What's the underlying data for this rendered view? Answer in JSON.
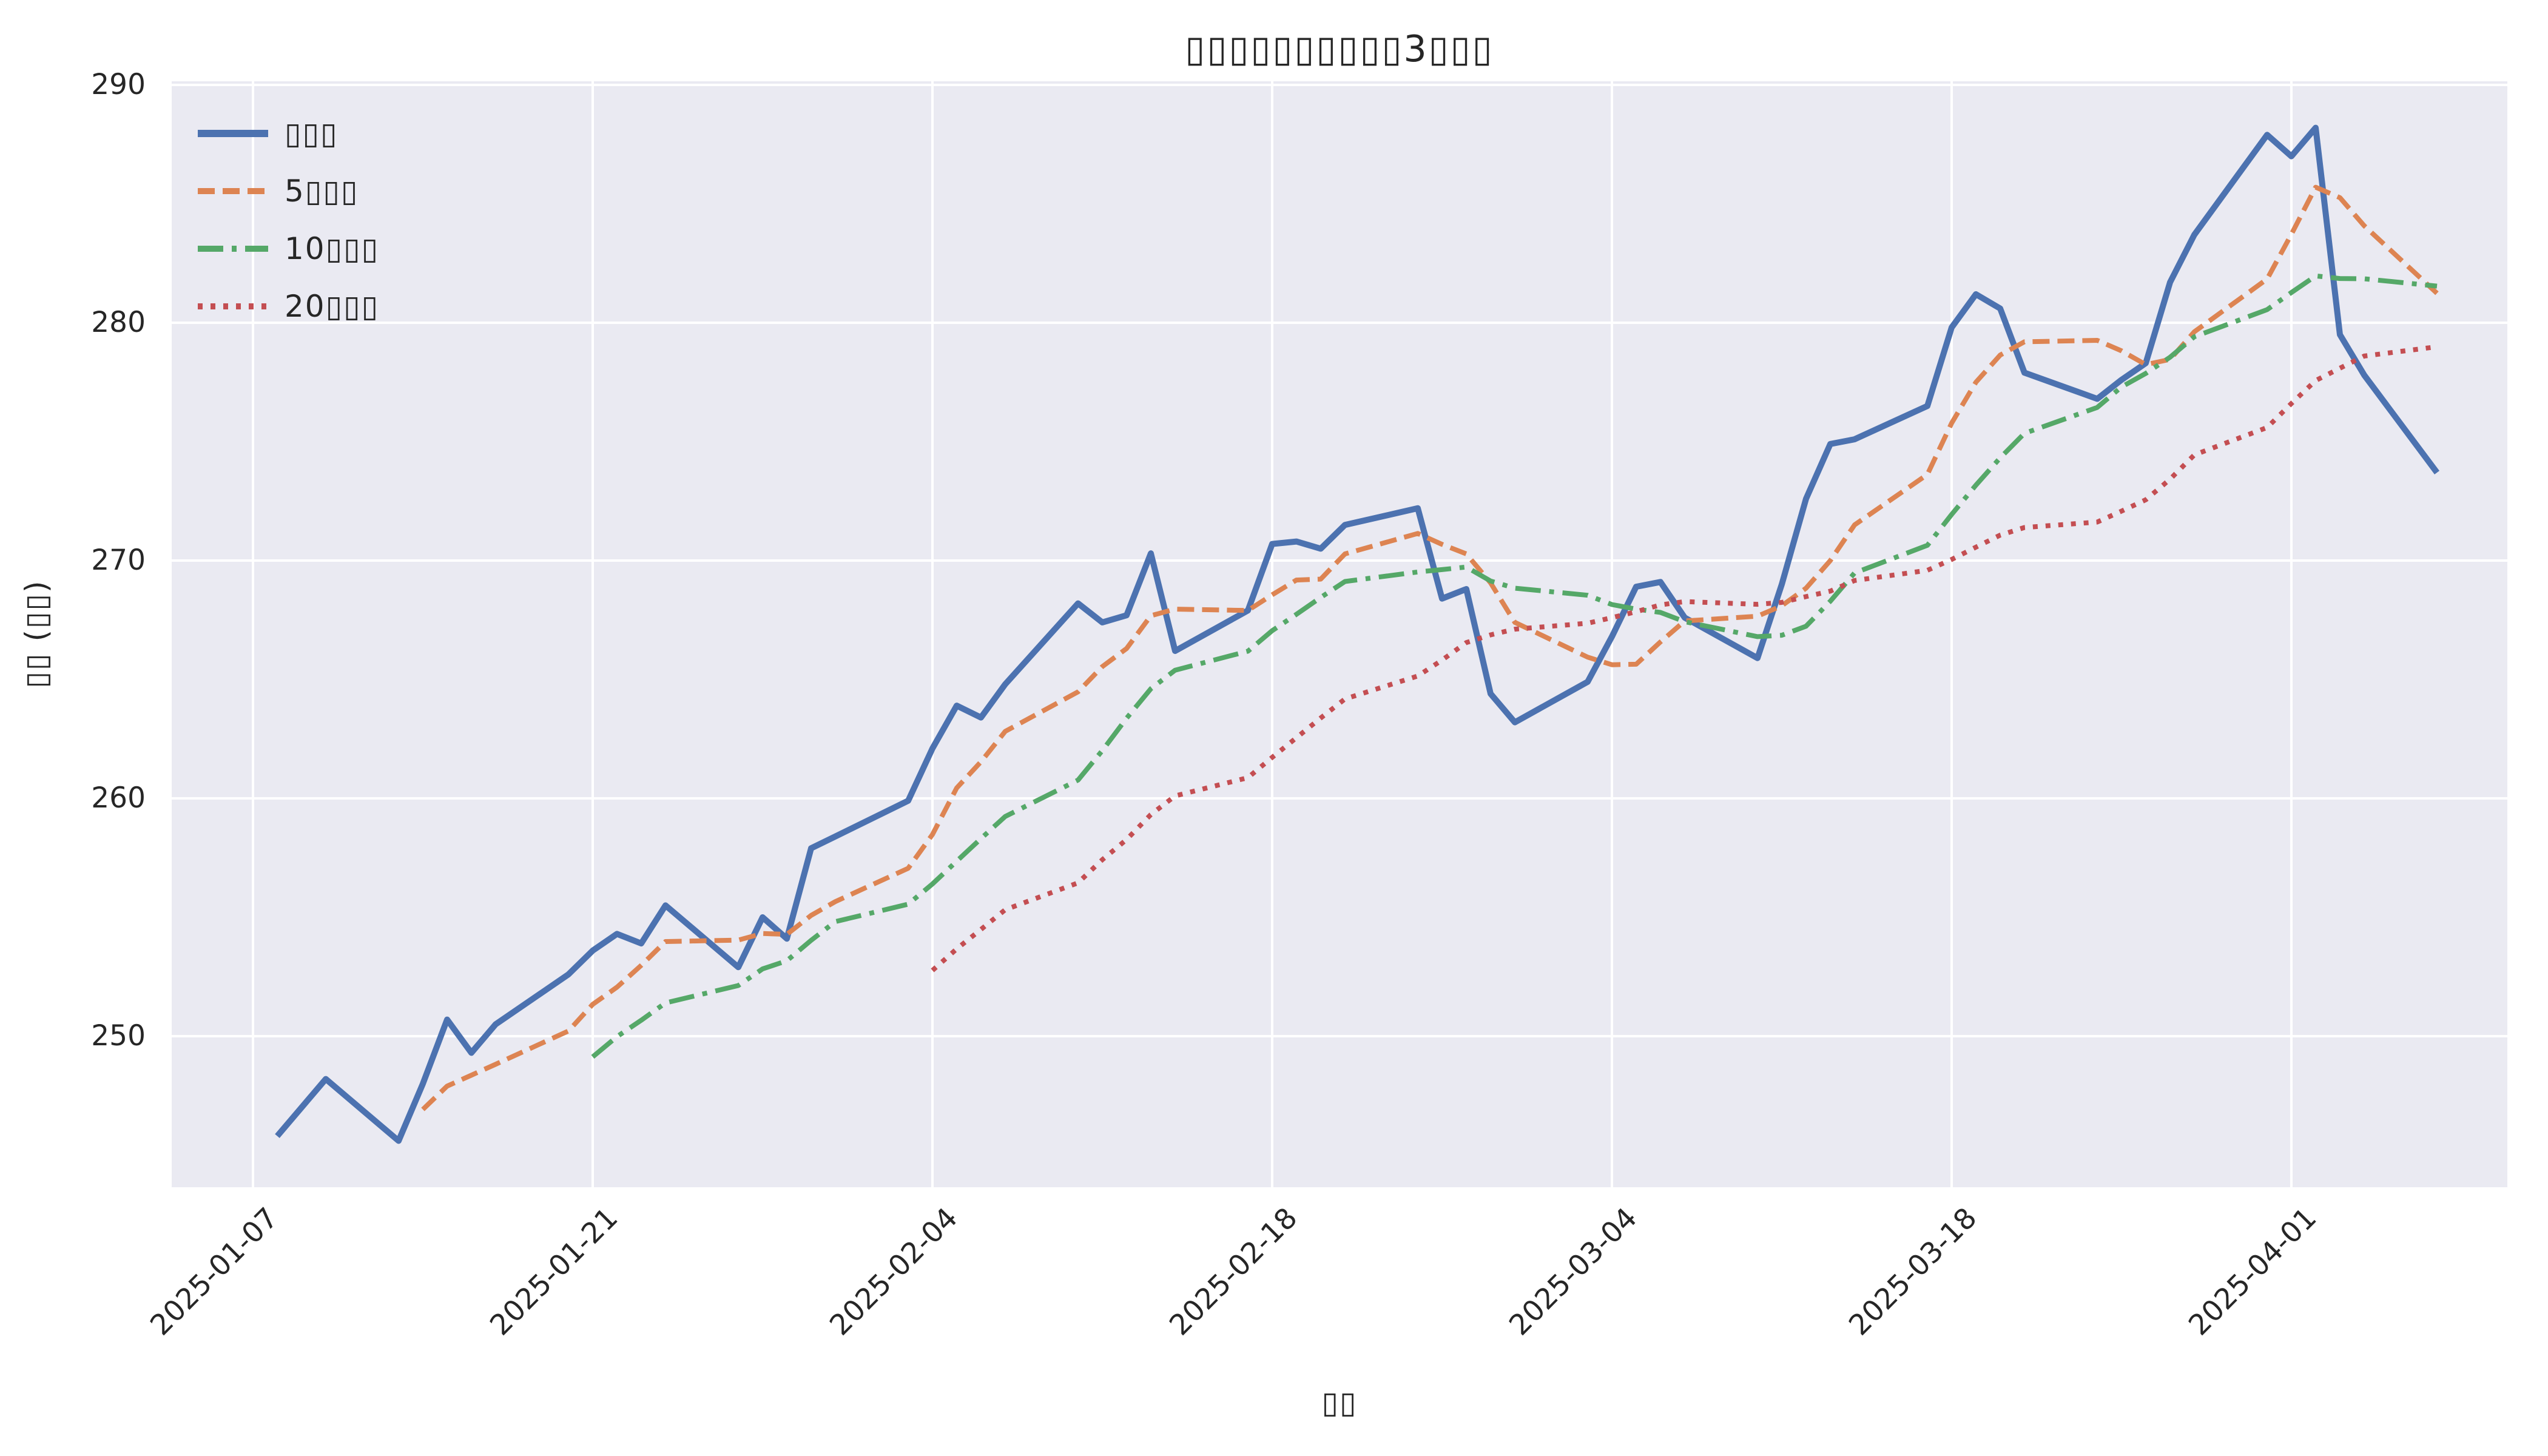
{
  "chart_data": {
    "type": "line",
    "title": "▯▯▯▯▯▯▯▯▯▯3▯▯▯",
    "xlabel": "▯▯",
    "ylabel": "▯▯ (▯▯)",
    "plot_bg": "#EAEAF2",
    "grid_color": "#FFFFFF",
    "text_color": "#262626",
    "grid": true,
    "legend_position": "upper left",
    "ylim": [
      243.7,
      290.2
    ],
    "yticks": [
      290,
      280,
      270,
      260,
      250
    ],
    "xticks": [
      "2025-01-07",
      "2025-01-21",
      "2025-02-04",
      "2025-02-18",
      "2025-03-04",
      "2025-03-18",
      "2025-04-01"
    ],
    "x_dates": [
      "2025-01-08",
      "2025-01-09",
      "2025-01-10",
      "2025-01-13",
      "2025-01-14",
      "2025-01-15",
      "2025-01-16",
      "2025-01-17",
      "2025-01-20",
      "2025-01-21",
      "2025-01-22",
      "2025-01-23",
      "2025-01-24",
      "2025-01-27",
      "2025-01-28",
      "2025-01-29",
      "2025-01-30",
      "2025-01-31",
      "2025-02-03",
      "2025-02-04",
      "2025-02-05",
      "2025-02-06",
      "2025-02-07",
      "2025-02-10",
      "2025-02-11",
      "2025-02-12",
      "2025-02-13",
      "2025-02-14",
      "2025-02-17",
      "2025-02-18",
      "2025-02-19",
      "2025-02-20",
      "2025-02-21",
      "2025-02-24",
      "2025-02-25",
      "2025-02-26",
      "2025-02-27",
      "2025-02-28",
      "2025-03-03",
      "2025-03-04",
      "2025-03-05",
      "2025-03-06",
      "2025-03-07",
      "2025-03-10",
      "2025-03-11",
      "2025-03-12",
      "2025-03-13",
      "2025-03-14",
      "2025-03-17",
      "2025-03-18",
      "2025-03-19",
      "2025-03-20",
      "2025-03-21",
      "2025-03-24",
      "2025-03-25",
      "2025-03-26",
      "2025-03-27",
      "2025-03-28",
      "2025-03-31",
      "2025-04-01",
      "2025-04-02",
      "2025-04-03",
      "2025-04-04",
      "2025-04-07"
    ],
    "series": [
      {
        "id": "close",
        "label": "▯▯▯",
        "color": "#4C72B0",
        "style": "solid",
        "values": [
          245.8,
          247.0,
          248.2,
          245.6,
          248.0,
          250.7,
          249.3,
          250.5,
          252.6,
          253.6,
          254.3,
          253.9,
          255.5,
          252.9,
          255.0,
          254.1,
          257.9,
          258.4,
          259.9,
          262.1,
          263.9,
          263.4,
          264.8,
          268.2,
          267.4,
          267.7,
          270.3,
          266.2,
          267.9,
          270.7,
          270.8,
          270.5,
          271.5,
          272.2,
          268.4,
          268.8,
          264.4,
          263.2,
          264.9,
          266.8,
          268.9,
          269.1,
          267.6,
          265.9,
          269.0,
          272.6,
          274.9,
          275.1,
          276.5,
          279.8,
          281.2,
          280.6,
          277.9,
          276.8,
          277.6,
          278.3,
          281.7,
          283.7,
          287.9,
          287.0,
          288.2,
          279.5,
          277.8,
          273.7
        ]
      },
      {
        "id": "ma5",
        "label": "5▯▯▯",
        "color": "#DD8452",
        "style": "dashed",
        "derived": "rolling_mean",
        "window": 5
      },
      {
        "id": "ma10",
        "label": "10▯▯▯",
        "color": "#55A868",
        "style": "dashdot",
        "derived": "rolling_mean",
        "window": 10
      },
      {
        "id": "ma20",
        "label": "20▯▯▯",
        "color": "#C44E52",
        "style": "dotted",
        "derived": "rolling_mean",
        "window": 20
      }
    ]
  }
}
